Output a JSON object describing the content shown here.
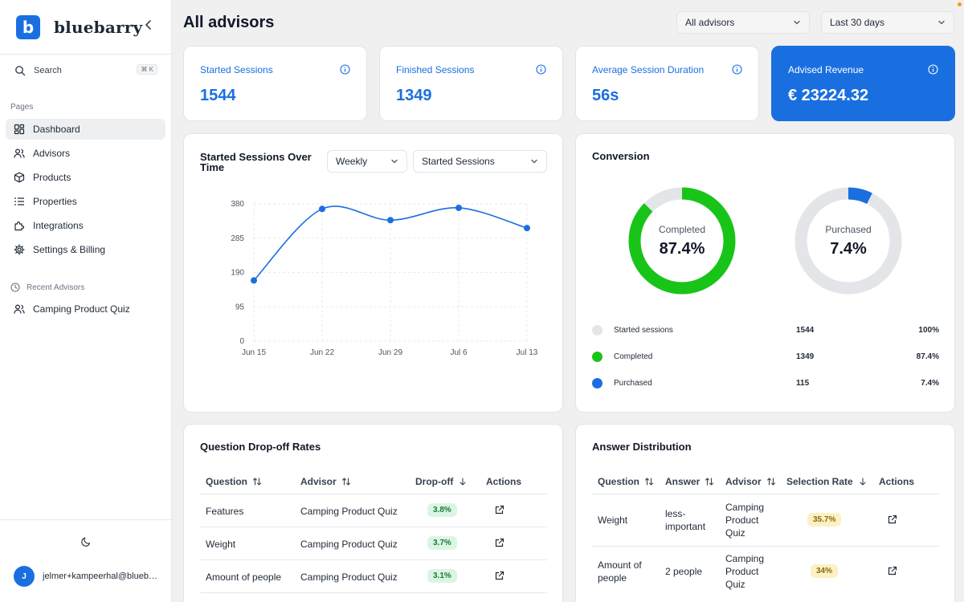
{
  "brand": {
    "logo_letter": "b",
    "name": "bluebarry"
  },
  "search": {
    "label": "Search",
    "shortcut": "⌘ K"
  },
  "sidebar": {
    "section_label": "Pages",
    "items": [
      {
        "label": "Dashboard",
        "icon": "grid-icon",
        "active": true
      },
      {
        "label": "Advisors",
        "icon": "users-icon"
      },
      {
        "label": "Products",
        "icon": "box-icon"
      },
      {
        "label": "Properties",
        "icon": "list-icon"
      },
      {
        "label": "Integrations",
        "icon": "puzzle-icon"
      },
      {
        "label": "Settings & Billing",
        "icon": "gear-icon"
      }
    ],
    "recent_label": "Recent Advisors",
    "recent": [
      {
        "label": "Camping Product Quiz",
        "icon": "users-icon"
      }
    ],
    "user": {
      "initial": "J",
      "email": "jelmer+kampeerhal@bluebarry.ai"
    }
  },
  "header": {
    "title": "All advisors",
    "advisor_filter": "All advisors",
    "period_filter": "Last 30 days"
  },
  "stats": [
    {
      "label": "Started Sessions",
      "value": "1544"
    },
    {
      "label": "Finished Sessions",
      "value": "1349"
    },
    {
      "label": "Average Session Duration",
      "value": "56s"
    },
    {
      "label": "Advised Revenue",
      "value": "€ 23224.32"
    }
  ],
  "sessions_chart": {
    "title_line1": "Started Sessions Over",
    "title_line2": "Time",
    "interval": "Weekly",
    "metric": "Started Sessions"
  },
  "chart_data": {
    "type": "line",
    "categories": [
      "Jun 15",
      "Jun 22",
      "Jun 29",
      "Jul 6",
      "Jul 13"
    ],
    "series": [
      {
        "values": [
          168,
          366,
          335,
          369,
          313
        ]
      }
    ],
    "yticks": [
      0,
      95,
      190,
      285,
      380
    ],
    "ylim": [
      0,
      380
    ],
    "grid": true,
    "color": "#1a6fe0"
  },
  "conversion": {
    "title": "Conversion",
    "donuts": [
      {
        "label": "Completed",
        "value_text": "87.4%",
        "fraction": 0.874,
        "color": "#19c419"
      },
      {
        "label": "Purchased",
        "value_text": "7.4%",
        "fraction": 0.074,
        "color": "#1a6fe0"
      }
    ],
    "legend": [
      {
        "name": "Started sessions",
        "count": "1544",
        "pct": "100%",
        "color": "#e4e5e8"
      },
      {
        "name": "Completed",
        "count": "1349",
        "pct": "87.4%",
        "color": "#19c419"
      },
      {
        "name": "Purchased",
        "count": "115",
        "pct": "7.4%",
        "color": "#1a6fe0"
      }
    ]
  },
  "dropoff": {
    "title": "Question Drop-off Rates",
    "headers": {
      "question": "Question",
      "advisor": "Advisor",
      "dropoff": "Drop-off",
      "actions": "Actions"
    },
    "rows": [
      {
        "question": "Features",
        "advisor": "Camping Product Quiz",
        "rate": "3.8%"
      },
      {
        "question": "Weight",
        "advisor": "Camping Product Quiz",
        "rate": "3.7%"
      },
      {
        "question": "Amount of people",
        "advisor": "Camping Product Quiz",
        "rate": "3.1%"
      }
    ]
  },
  "answers": {
    "title": "Answer Distribution",
    "headers": {
      "question": "Question",
      "answer": "Answer",
      "advisor": "Advisor",
      "rate": "Selection Rate",
      "actions": "Actions"
    },
    "rows": [
      {
        "question": "Weight",
        "answer": "less-important",
        "advisor_l1": "Camping",
        "advisor_l2": "Product",
        "advisor_l3": "Quiz",
        "rate": "35.7%"
      },
      {
        "question_l1": "Amount of",
        "question_l2": "people",
        "answer": "2 people",
        "advisor_l1": "Camping",
        "advisor_l2": "Product",
        "advisor_l3": "Quiz",
        "rate": "34%"
      }
    ]
  }
}
